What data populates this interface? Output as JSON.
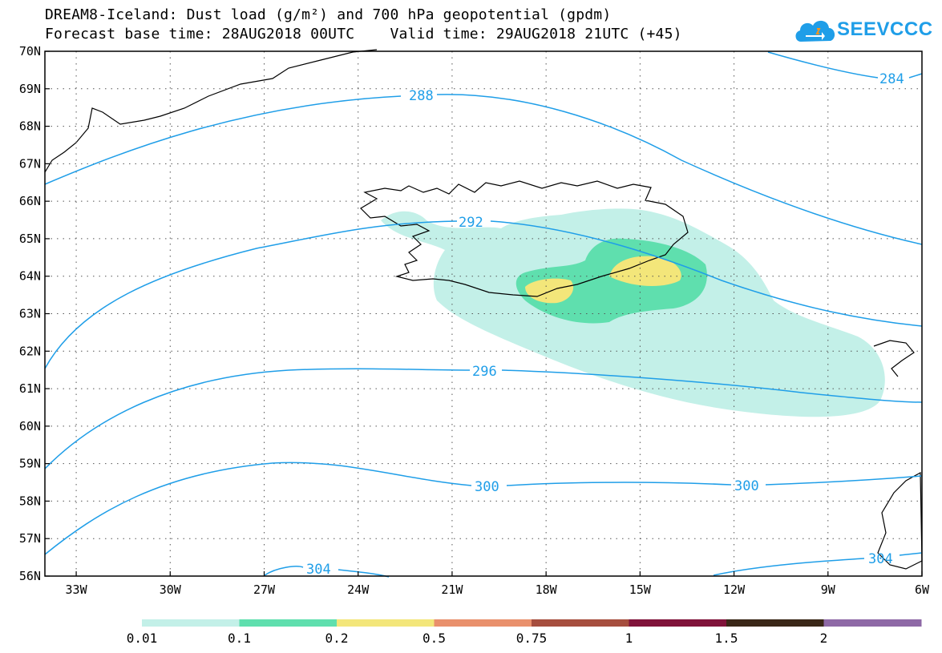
{
  "header": {
    "title": "DREAM8-Iceland: Dust load (g/m²) and 700 hPa geopotential (gpdm)",
    "subtitle": "Forecast base time: 28AUG2018 00UTC    Valid time: 29AUG2018 21UTC (+45)"
  },
  "logo": {
    "text": "SEEVCCC",
    "color": "#1f9ee8",
    "icon": "cloud-icon"
  },
  "map": {
    "lon_min": -34,
    "lon_max": -6,
    "lat_min": 56,
    "lat_max": 70,
    "lat_ticks": [
      "70N",
      "69N",
      "68N",
      "67N",
      "66N",
      "65N",
      "64N",
      "63N",
      "62N",
      "61N",
      "60N",
      "59N",
      "58N",
      "57N",
      "56N"
    ],
    "lon_ticks": [
      "33W",
      "30W",
      "27W",
      "24W",
      "21W",
      "18W",
      "15W",
      "12W",
      "9W",
      "6W"
    ],
    "contour_color": "#1f9ee8",
    "contour_labels": [
      "284",
      "288",
      "292",
      "296",
      "300",
      "300",
      "304",
      "304"
    ]
  },
  "legend": {
    "labels": [
      "0.01",
      "0.1",
      "0.2",
      "0.5",
      "0.75",
      "1",
      "1.5",
      "2"
    ],
    "colors": [
      "#c3f0e8",
      "#5fdfae",
      "#f3e67a",
      "#e9906c",
      "#a64e3e",
      "#80133a",
      "#3a2717",
      "#8e69a6"
    ]
  }
}
